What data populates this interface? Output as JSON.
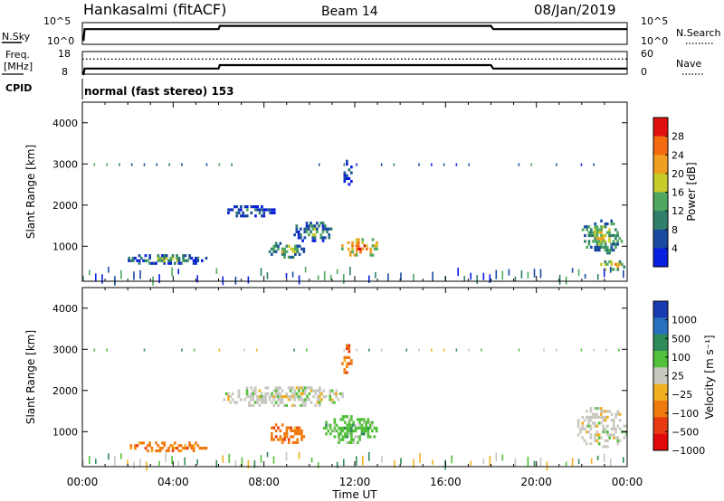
{
  "header": {
    "station": "Hankasalmi (fitACF)",
    "beam": "Beam 14",
    "date": "08/Jan/2019"
  },
  "nsky_panel": {
    "left_label": "N.Sky",
    "right_label": "N.Search",
    "left_ticks": [
      "10^5",
      "10^0"
    ],
    "right_ticks": [
      "10^5",
      "10^0"
    ],
    "series": {
      "name": "N.Sky",
      "x_hours": [
        0,
        0.05,
        0.1,
        6.0,
        6.05,
        18.0,
        18.1,
        24
      ],
      "value_level": [
        0.2,
        0.2,
        0.7,
        0.7,
        0.85,
        0.85,
        0.7,
        0.7
      ]
    }
  },
  "freq_panel": {
    "left_label_1": "Freq.",
    "left_label_2": "[MHz]",
    "right_label": "Nave",
    "left_ticks": [
      "18",
      "8"
    ],
    "right_ticks": [
      "60",
      "0"
    ],
    "freq_series": {
      "x_hours": [
        0,
        0.05,
        0.1,
        6.0,
        6.05,
        18.0,
        18.1,
        24
      ],
      "value_mhz": [
        8,
        8,
        10.5,
        10.5,
        12,
        12,
        10.5,
        10.5
      ]
    },
    "nave_level": 40
  },
  "cpid": {
    "label": "CPID",
    "text": "normal (fast stereo) 153"
  },
  "power_panel": {
    "ylabel": "Slant Range [km]",
    "yticks": [
      "4000",
      "3000",
      "2000",
      "1000"
    ],
    "colorbar_label": "Power [dB]",
    "colorbar_ticks": [
      "28",
      "24",
      "20",
      "16",
      "12",
      "8",
      "4"
    ],
    "colors": [
      "#0a1ee0",
      "#1a4aa0",
      "#2f7f6a",
      "#4ea860",
      "#c8cc2a",
      "#f0a020",
      "#f46a10",
      "#e01010"
    ]
  },
  "velocity_panel": {
    "ylabel": "Slant Range [km]",
    "yticks": [
      "4000",
      "3000",
      "2000",
      "1000"
    ],
    "colorbar_label": "Velocity [m s⁻¹]",
    "colorbar_ticks": [
      "1000",
      "500",
      "100",
      "25",
      "−25",
      "−100",
      "−500",
      "−1000"
    ],
    "colors": [
      "#1a3ab0",
      "#2870c0",
      "#2e8a58",
      "#52c03a",
      "#c8c8c0",
      "#f0b020",
      "#f07a10",
      "#e83a10",
      "#e00a0a"
    ]
  },
  "xaxis": {
    "label": "Time UT",
    "ticks": [
      "00:00",
      "04:00",
      "08:00",
      "12:00",
      "16:00",
      "20:00",
      "00:00"
    ]
  },
  "chart_data": {
    "type": "heatmap",
    "x_unit": "hours UT",
    "x_range": [
      0,
      24
    ],
    "y_unit": "km",
    "y_range": [
      150,
      4500
    ],
    "power_blobs_db": [
      {
        "t": [
          2.0,
          5.5
        ],
        "r": [
          550,
          800
        ],
        "v": 12
      },
      {
        "t": [
          6.2,
          8.5
        ],
        "r": [
          1700,
          2000
        ],
        "v": 8
      },
      {
        "t": [
          8.2,
          9.8
        ],
        "r": [
          700,
          1100
        ],
        "v": 16
      },
      {
        "t": [
          9.3,
          11.0
        ],
        "r": [
          1100,
          1600
        ],
        "v": 12
      },
      {
        "t": [
          11.4,
          13.1
        ],
        "r": [
          750,
          1200
        ],
        "v": 24
      },
      {
        "t": [
          11.5,
          11.9
        ],
        "r": [
          2400,
          3100
        ],
        "v": 8
      },
      {
        "t": [
          22.0,
          23.8
        ],
        "r": [
          800,
          1650
        ],
        "v": 16
      },
      {
        "t": [
          22.8,
          24.0
        ],
        "r": [
          400,
          650
        ],
        "v": 20
      }
    ],
    "velocity_blobs_ms": [
      {
        "t": [
          2.0,
          5.5
        ],
        "r": [
          500,
          750
        ],
        "v": -100
      },
      {
        "t": [
          6.2,
          11.5
        ],
        "r": [
          1600,
          2100
        ],
        "v": 0
      },
      {
        "t": [
          8.2,
          9.8
        ],
        "r": [
          700,
          1200
        ],
        "v": -100
      },
      {
        "t": [
          10.6,
          13.0
        ],
        "r": [
          700,
          1400
        ],
        "v": 100
      },
      {
        "t": [
          11.4,
          11.9
        ],
        "r": [
          2400,
          3200
        ],
        "v": -100
      },
      {
        "t": [
          21.8,
          24.0
        ],
        "r": [
          600,
          1600
        ],
        "v": 0
      }
    ]
  }
}
